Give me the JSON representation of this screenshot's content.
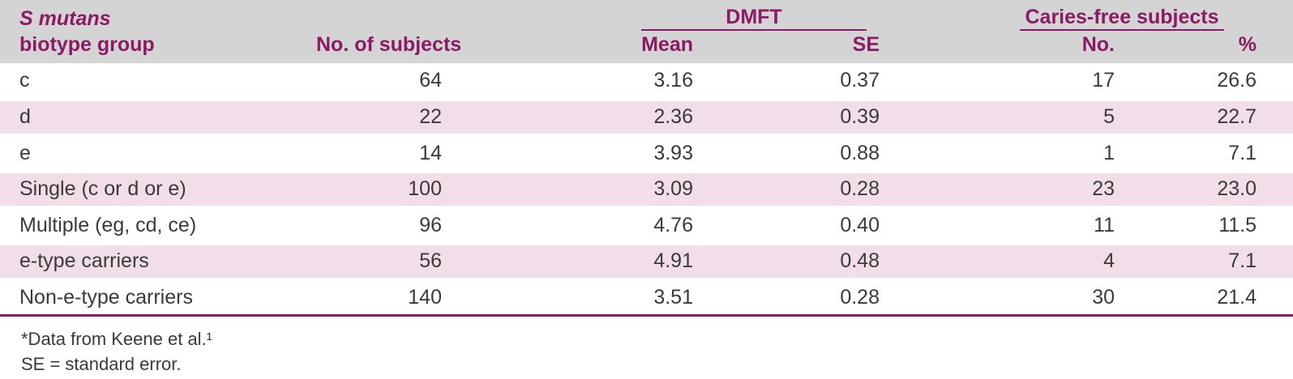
{
  "colors": {
    "accent_magenta": "#8c1a64",
    "header_background": "#d4d4d4",
    "stripe_pink": "#f2dee8",
    "body_text": "#3a3a3a"
  },
  "table": {
    "header": {
      "group_col_line1": "S mutans",
      "group_col_line2": "biotype group",
      "subjects": "No. of subjects",
      "dmft": "DMFT",
      "mean": "Mean",
      "se": "SE",
      "caries_free": "Caries-free subjects",
      "no": "No.",
      "pct": "%"
    },
    "rows": [
      {
        "group": "c",
        "subjects": "64",
        "mean": "3.16",
        "se": "0.37",
        "no": "17",
        "pct": "26.6"
      },
      {
        "group": "d",
        "subjects": "22",
        "mean": "2.36",
        "se": "0.39",
        "no": "5",
        "pct": "22.7"
      },
      {
        "group": "e",
        "subjects": "14",
        "mean": "3.93",
        "se": "0.88",
        "no": "1",
        "pct": "7.1"
      },
      {
        "group": "Single (c or d or e)",
        "subjects": "100",
        "mean": "3.09",
        "se": "0.28",
        "no": "23",
        "pct": "23.0"
      },
      {
        "group": "Multiple (eg, cd, ce)",
        "subjects": "96",
        "mean": "4.76",
        "se": "0.40",
        "no": "11",
        "pct": "11.5"
      },
      {
        "group": "e-type carriers",
        "subjects": "56",
        "mean": "4.91",
        "se": "0.48",
        "no": "4",
        "pct": "7.1"
      },
      {
        "group": "Non-e-type carriers",
        "subjects": "140",
        "mean": "3.51",
        "se": "0.28",
        "no": "30",
        "pct": "21.4"
      }
    ],
    "footnotes": [
      "*Data from Keene et al.¹",
      "SE = standard error."
    ]
  },
  "chart_data": {
    "type": "table",
    "columns": [
      "S mutans biotype group",
      "No. of subjects",
      "DMFT Mean",
      "DMFT SE",
      "Caries-free subjects No.",
      "Caries-free subjects %"
    ],
    "rows": [
      [
        "c",
        64,
        3.16,
        0.37,
        17,
        26.6
      ],
      [
        "d",
        22,
        2.36,
        0.39,
        5,
        22.7
      ],
      [
        "e",
        14,
        3.93,
        0.88,
        1,
        7.1
      ],
      [
        "Single (c or d or e)",
        100,
        3.09,
        0.28,
        23,
        23.0
      ],
      [
        "Multiple (eg, cd, ce)",
        96,
        4.76,
        0.4,
        11,
        11.5
      ],
      [
        "e-type carriers",
        56,
        4.91,
        0.48,
        4,
        7.1
      ],
      [
        "Non-e-type carriers",
        140,
        3.51,
        0.28,
        30,
        21.4
      ]
    ],
    "footnotes": [
      "*Data from Keene et al.¹",
      "SE = standard error."
    ]
  }
}
